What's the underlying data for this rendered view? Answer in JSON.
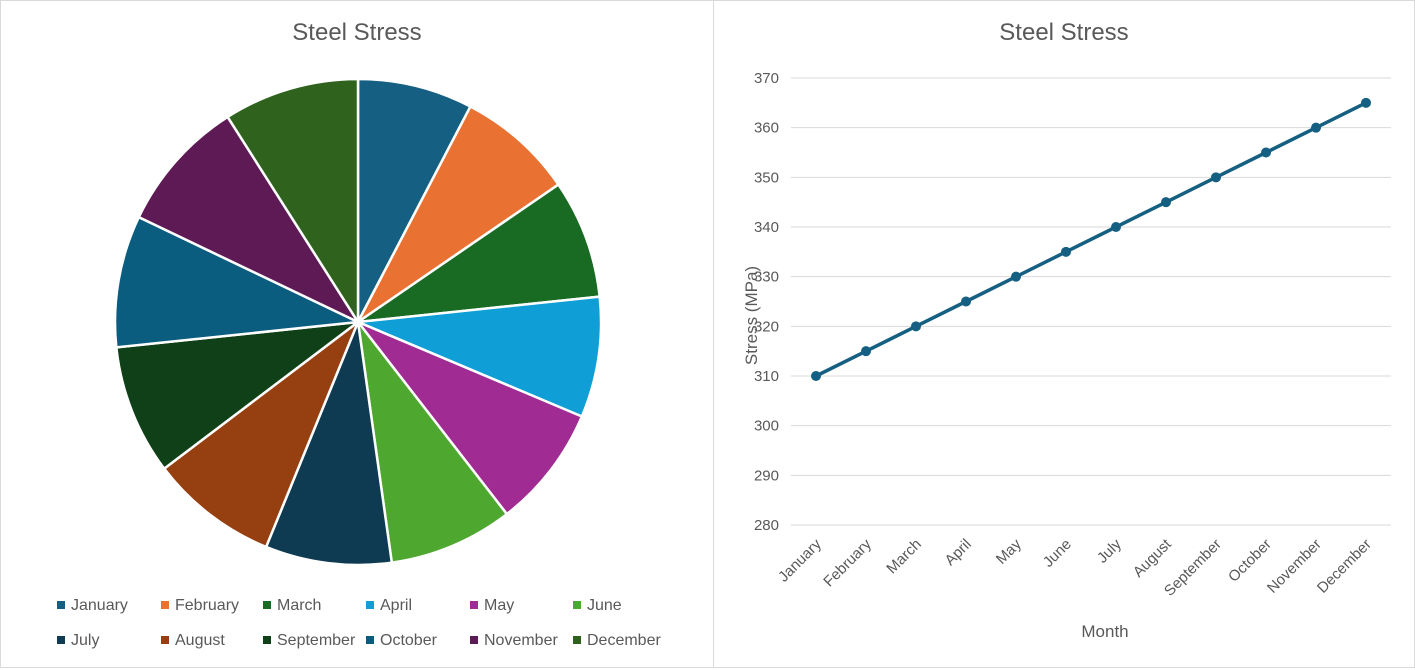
{
  "pie_chart": {
    "title": "Steel Stress"
  },
  "line_chart": {
    "title": "Steel Stress"
  },
  "chart_data": [
    {
      "type": "pie",
      "title": "Steel Stress",
      "categories": [
        "January",
        "February",
        "March",
        "April",
        "May",
        "June",
        "July",
        "August",
        "September",
        "October",
        "November",
        "December"
      ],
      "values": [
        310,
        315,
        320,
        325,
        330,
        335,
        340,
        345,
        350,
        355,
        360,
        365
      ],
      "colors": [
        "#156082",
        "#E97132",
        "#196B24",
        "#0F9ED5",
        "#A02B93",
        "#4EA72E",
        "#0E3A52",
        "#963F11",
        "#0F4017",
        "#0B5D80",
        "#5E1A55",
        "#2F621D"
      ],
      "legend_position": "bottom"
    },
    {
      "type": "line",
      "title": "Steel Stress",
      "categories": [
        "January",
        "February",
        "March",
        "April",
        "May",
        "June",
        "July",
        "August",
        "September",
        "October",
        "November",
        "December"
      ],
      "series": [
        {
          "name": "Stress (MPa)",
          "values": [
            310,
            315,
            320,
            325,
            330,
            335,
            340,
            345,
            350,
            355,
            360,
            365
          ],
          "color": "#156082"
        }
      ],
      "xlabel": "Month",
      "ylabel": "Stress (MPa)",
      "ylim": [
        280,
        370
      ],
      "yticks": [
        280,
        290,
        300,
        310,
        320,
        330,
        340,
        350,
        360,
        370
      ],
      "grid": true
    }
  ]
}
